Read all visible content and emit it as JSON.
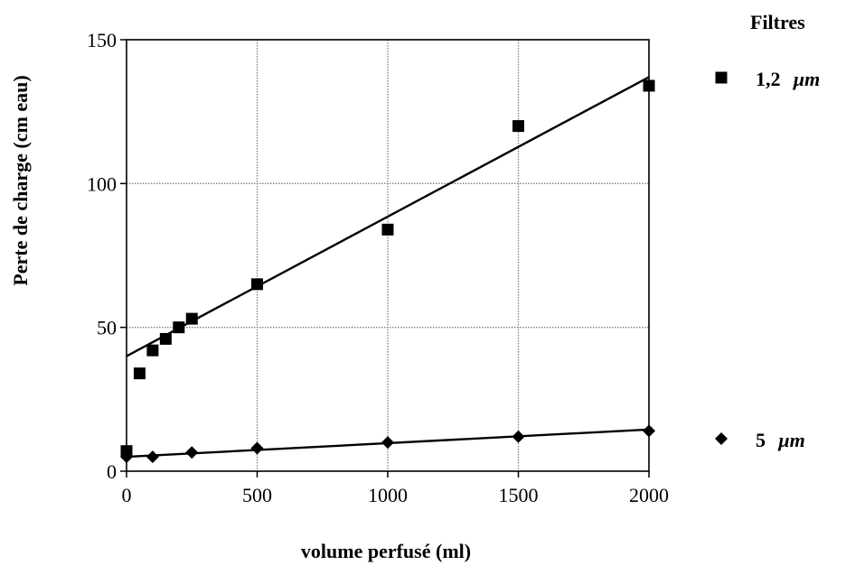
{
  "chart_data": {
    "type": "scatter",
    "xlabel": "volume perfusé (ml)",
    "ylabel": "Perte de charge (cm eau)",
    "xlim": [
      0,
      2000
    ],
    "ylim": [
      0,
      150
    ],
    "x_ticks": [
      0,
      500,
      1000,
      1500,
      2000
    ],
    "y_ticks": [
      0,
      50,
      100,
      150
    ],
    "grid": true,
    "legend_title": "Filtres",
    "legend_position": "right",
    "series": [
      {
        "name": "1,2 µm",
        "name_value": "1,2",
        "name_unit": "µm",
        "marker": "square",
        "color": "#000000",
        "x": [
          0,
          50,
          100,
          150,
          200,
          250,
          500,
          1000,
          1500,
          2000
        ],
        "y": [
          7,
          34,
          42,
          46,
          50,
          53,
          65,
          84,
          120,
          134
        ],
        "trendline": {
          "x": [
            0,
            2000
          ],
          "y": [
            40,
            137
          ]
        }
      },
      {
        "name": "5 µm",
        "name_value": "5",
        "name_unit": "µm",
        "marker": "diamond",
        "color": "#000000",
        "x": [
          0,
          100,
          250,
          500,
          1000,
          1500,
          2000
        ],
        "y": [
          5,
          5,
          6.5,
          8,
          10,
          12,
          14
        ],
        "trendline": {
          "x": [
            0,
            2000
          ],
          "y": [
            5,
            14.5
          ]
        }
      }
    ]
  }
}
